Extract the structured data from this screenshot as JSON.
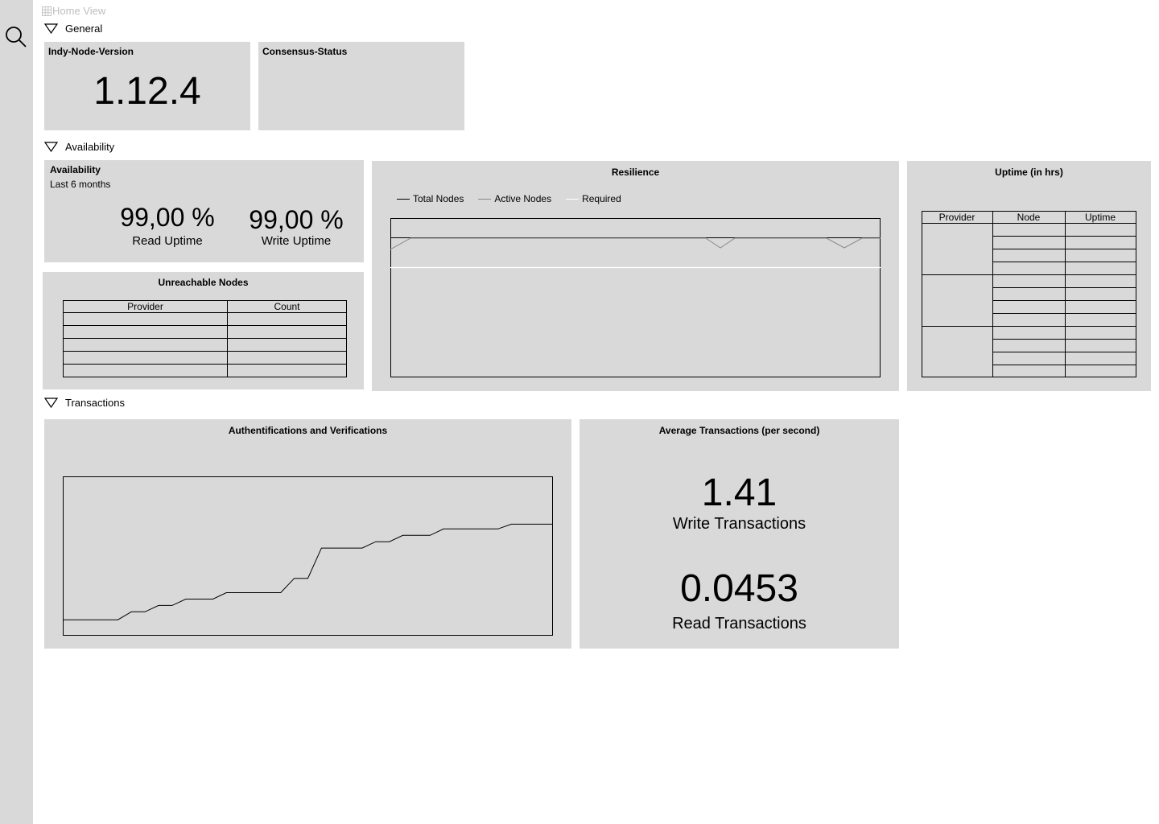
{
  "breadcrumb": {
    "label": "Home View"
  },
  "sections": {
    "general": "General",
    "availability": "Availability",
    "transactions": "Transactions"
  },
  "general": {
    "node_version": {
      "title": "Indy-Node-Version",
      "value": "1.12.4"
    },
    "consensus": {
      "title": "Consensus-Status"
    }
  },
  "availability": {
    "title": "Availability",
    "subtitle": "Last 6 months",
    "read": {
      "value": "99,00 %",
      "label": "Read Uptime"
    },
    "write": {
      "value": "99,00 %",
      "label": "Write Uptime"
    }
  },
  "unreachable": {
    "title": "Unreachable Nodes",
    "columns": [
      "Provider",
      "Count"
    ],
    "rows": [
      [
        "",
        ""
      ],
      [
        "",
        ""
      ],
      [
        "",
        ""
      ],
      [
        "",
        ""
      ],
      [
        "",
        ""
      ]
    ]
  },
  "resilience": {
    "title": "Resilience",
    "legend": [
      {
        "label": "Total Nodes",
        "color": "#000000"
      },
      {
        "label": "Active Nodes",
        "color": "#8a8a8a"
      },
      {
        "label": "Required",
        "color": "#ffffff"
      }
    ]
  },
  "uptime": {
    "title": "Uptime (in hrs)",
    "columns": [
      "Provider",
      "Node",
      "Uptime"
    ]
  },
  "auth": {
    "title": "Authentifications and Verifications"
  },
  "avg_tx": {
    "title": "Average Transactions (per second)",
    "write": {
      "value": "1.41",
      "label": "Write Transactions"
    },
    "read": {
      "value": "0.0453",
      "label": "Read Transactions"
    }
  },
  "chart_data": [
    {
      "type": "line",
      "title": "Resilience",
      "series": [
        {
          "name": "Total Nodes",
          "color": "#000000",
          "values": []
        },
        {
          "name": "Active Nodes",
          "color": "#8a8a8a",
          "values": []
        },
        {
          "name": "Required",
          "color": "#ffffff",
          "values": []
        }
      ]
    },
    {
      "type": "line",
      "title": "Authentifications and Verifications",
      "series": [
        {
          "values": [
            10,
            10,
            10,
            10,
            10,
            15,
            15,
            19,
            19,
            23,
            23,
            23,
            27,
            27,
            27,
            27,
            27,
            36,
            36,
            55,
            55,
            55,
            55,
            59,
            59,
            63,
            63,
            63,
            67,
            67,
            67,
            67,
            67,
            70,
            70,
            70,
            70
          ]
        }
      ],
      "grid": false
    }
  ]
}
